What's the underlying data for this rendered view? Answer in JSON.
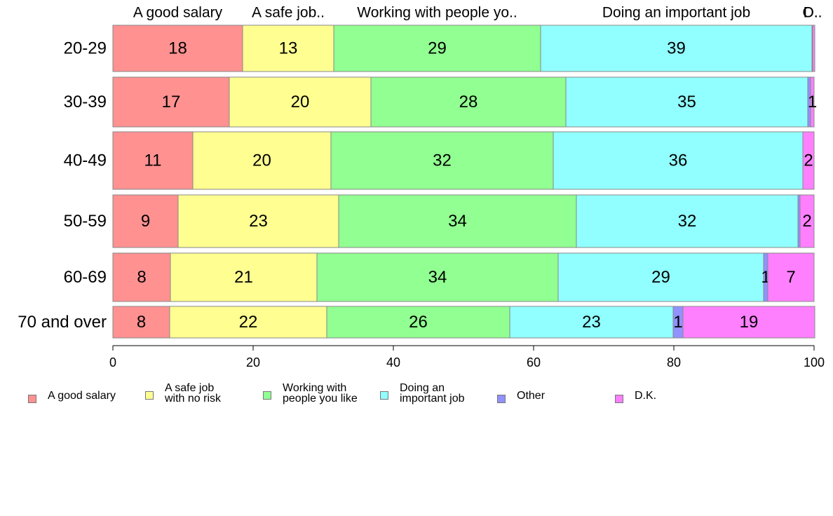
{
  "chart_data": {
    "type": "bar",
    "orientation": "horizontal",
    "stacked": true,
    "categories": [
      "20-29",
      "30-39",
      "40-49",
      "50-59",
      "60-69",
      "70 and over"
    ],
    "series": [
      {
        "name": "A good salary",
        "color": "#ff9191",
        "values": [
          18.5,
          16.6,
          11.4,
          9.3,
          8.2,
          8.1
        ]
      },
      {
        "name": "A safe job with no risk",
        "color": "#ffff91",
        "values": [
          13.0,
          20.2,
          19.7,
          22.9,
          20.9,
          22.4
        ]
      },
      {
        "name": "Working with people you like",
        "color": "#91ff91",
        "values": [
          29.5,
          27.8,
          31.7,
          33.9,
          34.4,
          26.1
        ]
      },
      {
        "name": "Doing an important job",
        "color": "#91ffff",
        "values": [
          38.7,
          34.5,
          35.6,
          31.6,
          29.3,
          23.3
        ]
      },
      {
        "name": "Other",
        "color": "#9191ff",
        "values": [
          0.1,
          0.4,
          0.0,
          0.3,
          0.6,
          1.4
        ]
      },
      {
        "name": "D.K.",
        "color": "#ff80ff",
        "values": [
          0.3,
          0.5,
          1.6,
          2.0,
          6.6,
          18.8
        ]
      }
    ],
    "bar_labels": [
      [
        "18",
        "13",
        "29",
        "39",
        "",
        ""
      ],
      [
        "17",
        "20",
        "28",
        "35",
        "",
        "1"
      ],
      [
        "11",
        "20",
        "32",
        "36",
        "",
        "2"
      ],
      [
        "9",
        "23",
        "34",
        "32",
        "",
        "2"
      ],
      [
        "8",
        "21",
        "34",
        "29",
        "1",
        "7"
      ],
      [
        "8",
        "22",
        "26",
        "23",
        "1",
        "19"
      ]
    ],
    "top_labels": [
      "A good salary",
      "A safe job..",
      "Working with people yo..",
      "Doing an important job",
      "O..",
      "D.."
    ],
    "xlim": [
      0,
      100
    ],
    "xticks": [
      "0",
      "20",
      "40",
      "60",
      "80",
      "100"
    ],
    "grid": false,
    "legend_position": "bottom",
    "legend_labels": [
      "A good salary",
      "A safe job\nwith no risk",
      "Working with\npeople you like",
      "Doing an\nimportant job",
      "Other",
      "D.K."
    ]
  }
}
